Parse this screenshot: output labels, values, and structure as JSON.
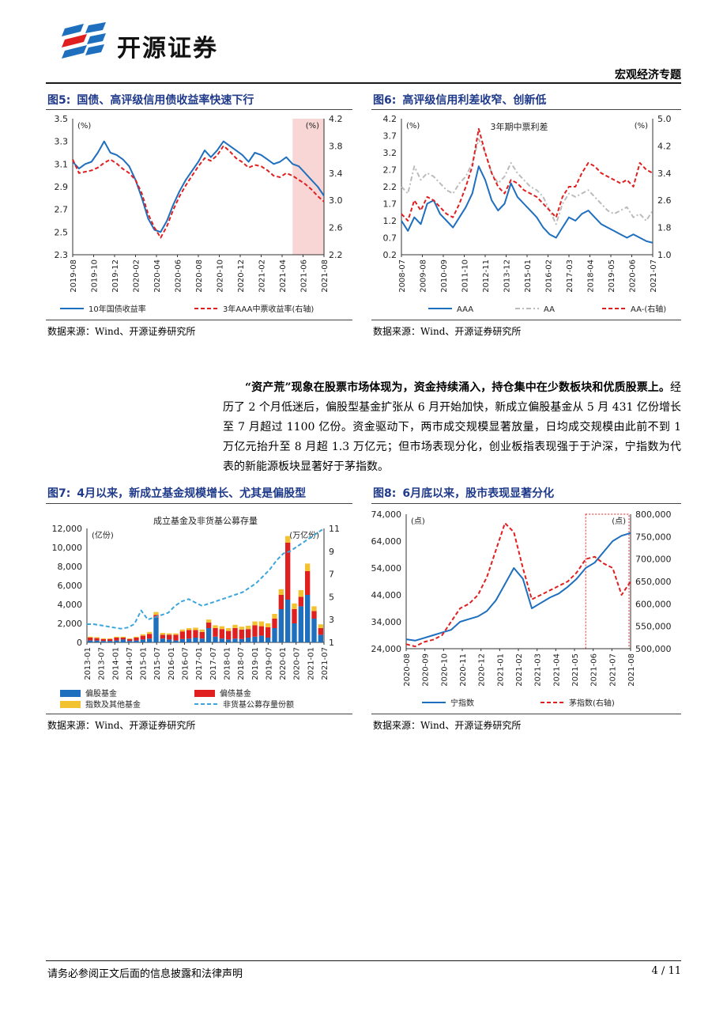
{
  "header": {
    "brand": "开源证券",
    "section": "宏观经济专题"
  },
  "figures": [
    {
      "num": "图5:",
      "title": "国债、高评级信用债收益率快速下行",
      "source": "数据来源：Wind、开源证券研究所",
      "chart_data": {
        "type": "line",
        "left_unit": "(%)",
        "right_unit": "(%)",
        "ylim_left": [
          2.3,
          3.5
        ],
        "yticks_left": [
          "3.5",
          "3.3",
          "3.1",
          "2.9",
          "2.7",
          "2.5",
          "2.3"
        ],
        "ylim_right": [
          2.2,
          4.2
        ],
        "yticks_right": [
          "4.2",
          "3.8",
          "3.4",
          "3.0",
          "2.6",
          "2.2"
        ],
        "xticks": [
          "2019-08",
          "2019-10",
          "2019-12",
          "2020-02",
          "2020-04",
          "2020-06",
          "2020-08",
          "2020-10",
          "2020-12",
          "2021-02",
          "2021-04",
          "2021-06",
          "2021-08"
        ],
        "series": [
          {
            "name": "10年国债收益率",
            "axis": "left",
            "color": "#1f6fbf",
            "dash": "",
            "values": [
              3.12,
              3.06,
              3.1,
              3.12,
              3.2,
              3.3,
              3.2,
              3.18,
              3.14,
              3.08,
              2.96,
              2.8,
              2.62,
              2.52,
              2.5,
              2.6,
              2.74,
              2.86,
              2.96,
              3.04,
              3.12,
              3.22,
              3.16,
              3.22,
              3.3,
              3.26,
              3.22,
              3.18,
              3.12,
              3.2,
              3.18,
              3.14,
              3.1,
              3.12,
              3.16,
              3.1,
              3.08,
              3.02,
              2.96,
              2.9,
              2.82
            ]
          },
          {
            "name": "3年AAA中票收益率(右轴)",
            "axis": "right",
            "color": "#e02020",
            "dash": "5,3",
            "values": [
              3.6,
              3.4,
              3.42,
              3.44,
              3.48,
              3.55,
              3.6,
              3.54,
              3.46,
              3.4,
              3.3,
              3.1,
              2.8,
              2.6,
              2.45,
              2.62,
              2.86,
              3.06,
              3.22,
              3.36,
              3.5,
              3.62,
              3.58,
              3.66,
              3.8,
              3.72,
              3.62,
              3.56,
              3.48,
              3.52,
              3.5,
              3.44,
              3.36,
              3.34,
              3.4,
              3.36,
              3.3,
              3.24,
              3.16,
              3.06,
              2.98
            ]
          }
        ],
        "shade_from_index": 35
      }
    },
    {
      "num": "图6:",
      "title": "高评级信用利差收窄、创新低",
      "source": "数据来源：Wind、开源证券研究所",
      "chart_data": {
        "type": "line",
        "title": "3年期中票利差",
        "left_unit": "(%)",
        "right_unit": "(%)",
        "ylim_left": [
          0.2,
          4.2
        ],
        "yticks_left": [
          "4.2",
          "3.7",
          "3.2",
          "2.7",
          "2.2",
          "1.7",
          "1.2",
          "0.7",
          "0.2"
        ],
        "ylim_right": [
          1.0,
          5.0
        ],
        "yticks_right": [
          "5.0",
          "4.2",
          "3.4",
          "2.6",
          "1.8",
          "1.0"
        ],
        "xticks": [
          "2008-07",
          "2009-08",
          "2010-09",
          "2011-10",
          "2012-11",
          "2013-12",
          "2015-01",
          "2016-02",
          "2017-03",
          "2018-04",
          "2019-05",
          "2020-06",
          "2021-07"
        ],
        "series": [
          {
            "name": "AAA",
            "axis": "left",
            "color": "#1f6fbf",
            "dash": "",
            "values": [
              1.2,
              0.9,
              1.3,
              1.1,
              1.7,
              1.8,
              1.4,
              1.2,
              1.0,
              1.3,
              1.6,
              2.0,
              2.8,
              2.4,
              1.8,
              1.5,
              1.7,
              2.3,
              1.9,
              1.7,
              1.5,
              1.3,
              1.0,
              0.8,
              0.7,
              1.0,
              1.3,
              1.2,
              1.4,
              1.5,
              1.3,
              1.1,
              1.0,
              0.9,
              0.8,
              0.7,
              0.8,
              0.7,
              0.6,
              0.55
            ]
          },
          {
            "name": "AA",
            "axis": "left",
            "color": "#bbbbbb",
            "dash": "6,3,2,3",
            "values": [
              2.2,
              2.0,
              2.8,
              2.4,
              2.6,
              2.5,
              2.3,
              2.1,
              2.0,
              2.3,
              2.5,
              2.9,
              3.6,
              3.2,
              2.6,
              2.3,
              2.5,
              2.9,
              2.6,
              2.4,
              2.2,
              2.1,
              1.9,
              1.5,
              1.1,
              1.7,
              2.0,
              1.9,
              2.0,
              2.1,
              1.9,
              1.7,
              1.5,
              1.4,
              1.5,
              1.6,
              1.3,
              1.4,
              1.2,
              1.5
            ]
          },
          {
            "name": "AA-(右轴)",
            "axis": "right",
            "color": "#e02020",
            "dash": "5,3",
            "values": [
              2.2,
              2.0,
              2.6,
              2.3,
              2.7,
              2.6,
              2.4,
              2.2,
              2.1,
              2.5,
              3.0,
              3.6,
              4.7,
              4.0,
              3.4,
              3.0,
              2.8,
              3.2,
              3.1,
              2.9,
              2.8,
              2.7,
              2.5,
              2.3,
              2.1,
              2.7,
              3.0,
              3.0,
              3.4,
              3.7,
              3.6,
              3.4,
              3.3,
              3.2,
              3.1,
              3.2,
              3.0,
              3.7,
              3.5,
              3.4
            ]
          }
        ]
      }
    },
    {
      "num": "图7:",
      "title": "4月以来，新成立基金规模增长、尤其是偏股型",
      "source": "数据来源：Wind、开源证券研究所",
      "chart_data": {
        "type": "bar",
        "title": "成立基金及非货基公募存量",
        "left_unit": "(亿份)",
        "right_unit": "(万亿份)",
        "ylim_left": [
          0,
          12000
        ],
        "yticks_left": [
          "12,000",
          "10,000",
          "8,000",
          "6,000",
          "4,000",
          "2,000",
          "0"
        ],
        "ylim_right": [
          1,
          11
        ],
        "yticks_right": [
          "11",
          "9",
          "7",
          "5",
          "3",
          "1"
        ],
        "xticks": [
          "2013-01",
          "2013-07",
          "2014-01",
          "2014-07",
          "2015-01",
          "2015-07",
          "2016-01",
          "2016-07",
          "2017-01",
          "2017-07",
          "2018-01",
          "2018-07",
          "2019-01",
          "2019-07",
          "2020-01",
          "2020-07",
          "2021-01",
          "2021-07"
        ],
        "series": [
          {
            "name": "偏股基金",
            "color": "#1f6fbf",
            "values": [
              200,
              200,
              150,
              150,
              200,
              300,
              150,
              200,
              300,
              400,
              2600,
              400,
              300,
              200,
              350,
              400,
              500,
              400,
              1500,
              600,
              400,
              300,
              400,
              350,
              500,
              600,
              700,
              500,
              1500,
              3500,
              4500,
              2000,
              3800,
              5000,
              2500,
              800
            ]
          },
          {
            "name": "偏债基金",
            "color": "#e02020",
            "values": [
              300,
              250,
              200,
              200,
              300,
              200,
              200,
              300,
              400,
              500,
              300,
              400,
              500,
              600,
              800,
              900,
              800,
              700,
              600,
              900,
              1000,
              900,
              1100,
              1000,
              900,
              1200,
              1000,
              1100,
              1000,
              1500,
              6000,
              1500,
              1000,
              2500,
              800,
              700
            ]
          },
          {
            "name": "指数及其他基金",
            "color": "#f2c230",
            "values": [
              100,
              100,
              80,
              80,
              100,
              100,
              80,
              100,
              150,
              200,
              300,
              200,
              150,
              150,
              200,
              200,
              250,
              250,
              300,
              300,
              300,
              300,
              350,
              300,
              350,
              400,
              500,
              400,
              500,
              600,
              700,
              600,
              700,
              800,
              500,
              400
            ]
          },
          {
            "name": "非货基公募存量份额",
            "axis": "right",
            "color": "#3aa6dc",
            "dash": "5,3",
            "values": [
              2.6,
              2.6,
              2.5,
              2.4,
              2.3,
              2.2,
              2.3,
              2.6,
              3.8,
              3.0,
              3.2,
              3.4,
              3.6,
              4.2,
              4.6,
              4.8,
              4.5,
              4.2,
              4.4,
              4.6,
              4.8,
              5.0,
              5.2,
              5.4,
              5.8,
              6.2,
              6.8,
              7.4,
              8.2,
              8.8,
              9.0,
              9.4,
              9.8,
              10.2,
              10.6,
              11.0
            ]
          }
        ]
      }
    },
    {
      "num": "图8:",
      "title": "6月底以来，股市表现显著分化",
      "source": "数据来源：Wind、开源证券研究所",
      "chart_data": {
        "type": "line",
        "left_unit": "(点)",
        "right_unit": "(点)",
        "ylim_left": [
          24000,
          74000
        ],
        "yticks_left": [
          "74,000",
          "64,000",
          "54,000",
          "44,000",
          "34,000",
          "24,000"
        ],
        "ylim_right": [
          500000,
          800000
        ],
        "yticks_right": [
          "800,000",
          "750,000",
          "700,000",
          "650,000",
          "600,000",
          "550,000",
          "500,000"
        ],
        "xticks": [
          "2020-08",
          "2020-09",
          "2020-10",
          "2020-11",
          "2020-12",
          "2021-01",
          "2021-02",
          "2021-03",
          "2021-04",
          "2021-05",
          "2021-06",
          "2021-07",
          "2021-08"
        ],
        "series": [
          {
            "name": "宁指数",
            "axis": "left",
            "color": "#1f6fbf",
            "dash": "",
            "values": [
              27500,
              27000,
              28000,
              29000,
              30000,
              31000,
              34000,
              35000,
              36000,
              38000,
              42000,
              48000,
              54000,
              50000,
              39000,
              41000,
              43000,
              44500,
              47000,
              50000,
              54000,
              56000,
              60000,
              64000,
              66000,
              67000
            ]
          },
          {
            "name": "茅指数(右轴)",
            "axis": "right",
            "color": "#e02020",
            "dash": "5,3",
            "values": [
              510000,
              505000,
              515000,
              520000,
              530000,
              560000,
              590000,
              600000,
              620000,
              660000,
              720000,
              780000,
              760000,
              680000,
              610000,
              620000,
              630000,
              640000,
              650000,
              670000,
              700000,
              705000,
              690000,
              680000,
              620000,
              650000
            ]
          }
        ],
        "shade_from_index": 20
      }
    }
  ],
  "paragraph": {
    "lead": "“资产荒”现象在股票市场体现为，资金持续涌入，持仓集中在少数板块和优质股票上。",
    "body": "经历了 2 个月低迷后，偏股型基金扩张从 6 月开始加快，新成立偏股基金从 5 月 431 亿份增长至 7 月超过 1100 亿份。资金驱动下，两市成交规模显著放量，日均成交规模由此前不到 1 万亿元抬升至 8 月超 1.3 万亿元；但市场表现分化，创业板指表现强于于沪深，宁指数为代表的新能源板块显著好于茅指数。"
  },
  "footer": {
    "disclaimer": "请务必参阅正文后面的信息披露和法律声明",
    "page": "4 / 11"
  }
}
